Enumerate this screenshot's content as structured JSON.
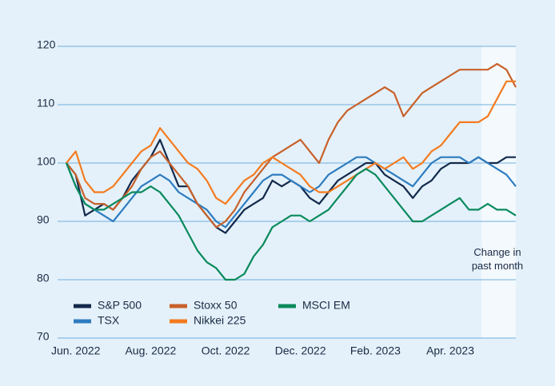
{
  "chart_data": {
    "type": "line",
    "categories": [
      null,
      "Jun. 2022",
      null,
      null,
      null,
      null,
      null,
      null,
      null,
      "Aug. 2022",
      null,
      null,
      null,
      null,
      null,
      null,
      null,
      "Oct. 2022",
      null,
      null,
      null,
      null,
      null,
      null,
      null,
      "Dec. 2022",
      null,
      null,
      null,
      null,
      null,
      null,
      null,
      "Feb. 2023",
      null,
      null,
      null,
      null,
      null,
      null,
      null,
      "Apr. 2023",
      null,
      null,
      null,
      null,
      null,
      null,
      null
    ],
    "series": [
      {
        "name": "S&P 500",
        "color": "#13294b",
        "values": [
          100,
          98,
          91,
          92,
          93,
          92,
          94,
          97,
          99,
          101,
          104,
          100,
          96,
          96,
          93,
          91,
          89,
          88,
          90,
          92,
          93,
          94,
          97,
          96,
          97,
          96,
          94,
          93,
          95,
          97,
          98,
          99,
          100,
          100,
          98,
          97,
          96,
          94,
          96,
          97,
          99,
          100,
          100,
          100,
          101,
          100,
          100,
          101,
          101
        ]
      },
      {
        "name": "TSX",
        "color": "#2e7cc0",
        "values": [
          100,
          96,
          93,
          92,
          91,
          90,
          92,
          94,
          96,
          97,
          98,
          97,
          95,
          94,
          93,
          92,
          90,
          89,
          91,
          93,
          95,
          97,
          98,
          98,
          97,
          96,
          95,
          96,
          98,
          99,
          100,
          101,
          101,
          100,
          99,
          98,
          97,
          96,
          98,
          100,
          101,
          101,
          101,
          100,
          101,
          100,
          99,
          98,
          96
        ]
      },
      {
        "name": "Stoxx 50",
        "color": "#c8612a",
        "values": [
          100,
          98,
          94,
          93,
          93,
          92,
          94,
          96,
          99,
          101,
          102,
          100,
          98,
          96,
          93,
          91,
          89,
          90,
          92,
          95,
          97,
          99,
          101,
          102,
          103,
          104,
          102,
          100,
          104,
          107,
          109,
          110,
          111,
          112,
          113,
          112,
          108,
          110,
          112,
          113,
          114,
          115,
          116,
          116,
          116,
          116,
          117,
          116,
          113
        ]
      },
      {
        "name": "Nikkei 225",
        "color": "#f47b20",
        "values": [
          100,
          102,
          97,
          95,
          95,
          96,
          98,
          100,
          102,
          103,
          106,
          104,
          102,
          100,
          99,
          97,
          94,
          93,
          95,
          97,
          98,
          100,
          101,
          100,
          99,
          98,
          96,
          95,
          95,
          96,
          97,
          98,
          99,
          100,
          99,
          100,
          101,
          99,
          100,
          102,
          103,
          105,
          107,
          107,
          107,
          108,
          111,
          114,
          114
        ]
      },
      {
        "name": "MSCI EM",
        "color": "#0a8a5c",
        "values": [
          100,
          96,
          93,
          92,
          92,
          93,
          94,
          95,
          95,
          96,
          95,
          93,
          91,
          88,
          85,
          83,
          82,
          80,
          80,
          81,
          84,
          86,
          89,
          90,
          91,
          91,
          90,
          91,
          92,
          94,
          96,
          98,
          99,
          98,
          96,
          94,
          92,
          90,
          90,
          91,
          92,
          93,
          94,
          92,
          92,
          93,
          92,
          92,
          91
        ]
      }
    ],
    "ylim": [
      70,
      120
    ],
    "yticks": [
      70,
      80,
      90,
      100,
      110,
      120
    ],
    "grid": true,
    "annotation": "Change in past month"
  }
}
